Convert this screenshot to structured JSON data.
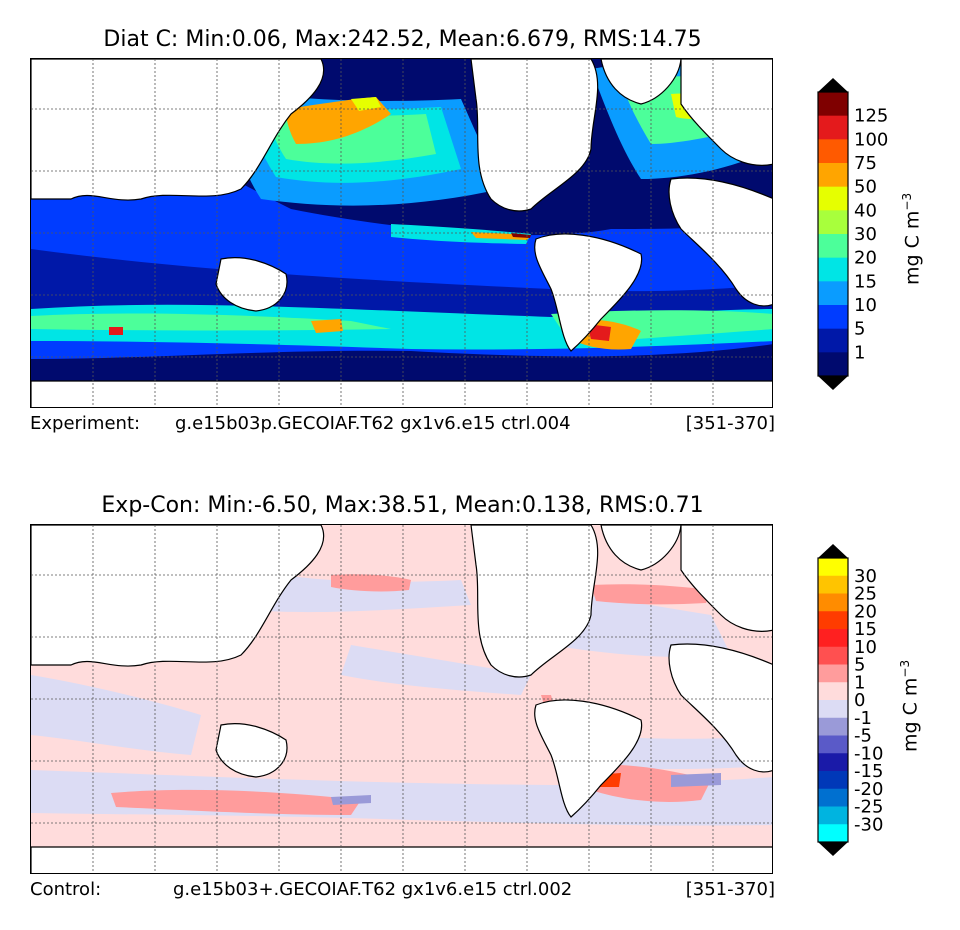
{
  "panels": [
    {
      "id": "experiment",
      "title": "Diat C: Min:0.06, Max:242.52, Mean:6.679, RMS:14.75",
      "caption_label": "Experiment:",
      "caption_case": "g.e15b03p.GECOIAF.T62 gx1v6.e15 ctrl.004",
      "caption_years": "[351-370]",
      "colorbar": {
        "unit": "mg C m",
        "unit_exponent": "−3",
        "extend": "both",
        "levels": [
          "125",
          "100",
          "75",
          "50",
          "40",
          "30",
          "20",
          "15",
          "10",
          "5",
          "1"
        ],
        "colors": [
          "#7f0000",
          "#e41a1c",
          "#ff5a00",
          "#ffa500",
          "#e6ff00",
          "#a8ff3c",
          "#4cff9a",
          "#00e5e5",
          "#0a9cff",
          "#003cff",
          "#0018a8",
          "#000a6e"
        ],
        "over_color": "#000000",
        "under_color": "#000000"
      }
    },
    {
      "id": "difference",
      "title": "Exp-Con: Min:-6.50, Max:38.51, Mean:0.138, RMS:0.71",
      "caption_label": "Control:",
      "caption_case": "g.e15b03+.GECOIAF.T62 gx1v6.e15 ctrl.002",
      "caption_years": "[351-370]",
      "colorbar": {
        "unit": "mg C m",
        "unit_exponent": "−3",
        "extend": "both",
        "levels": [
          "30",
          "25",
          "20",
          "15",
          "10",
          "5",
          "1",
          "0",
          "-1",
          "-5",
          "-10",
          "-15",
          "-20",
          "-25",
          "-30"
        ],
        "colors": [
          "#ffff00",
          "#ffc400",
          "#ff8c00",
          "#ff3c00",
          "#ff2020",
          "#ff5050",
          "#ff9c9c",
          "#ffdcdc",
          "#dcdcf4",
          "#9a9ad8",
          "#5a5ac8",
          "#1a1aa8",
          "#0038b8",
          "#0070d0",
          "#00b4e0",
          "#00ffff"
        ],
        "over_color": "#000000",
        "under_color": "#000000"
      }
    }
  ],
  "map": {
    "land_color": "#ffffff",
    "coastline_color": "#000000",
    "gridlines": "dotted",
    "top_ocean_base": "#000a6e",
    "bottom_ocean_base": "#ffdcdc"
  }
}
